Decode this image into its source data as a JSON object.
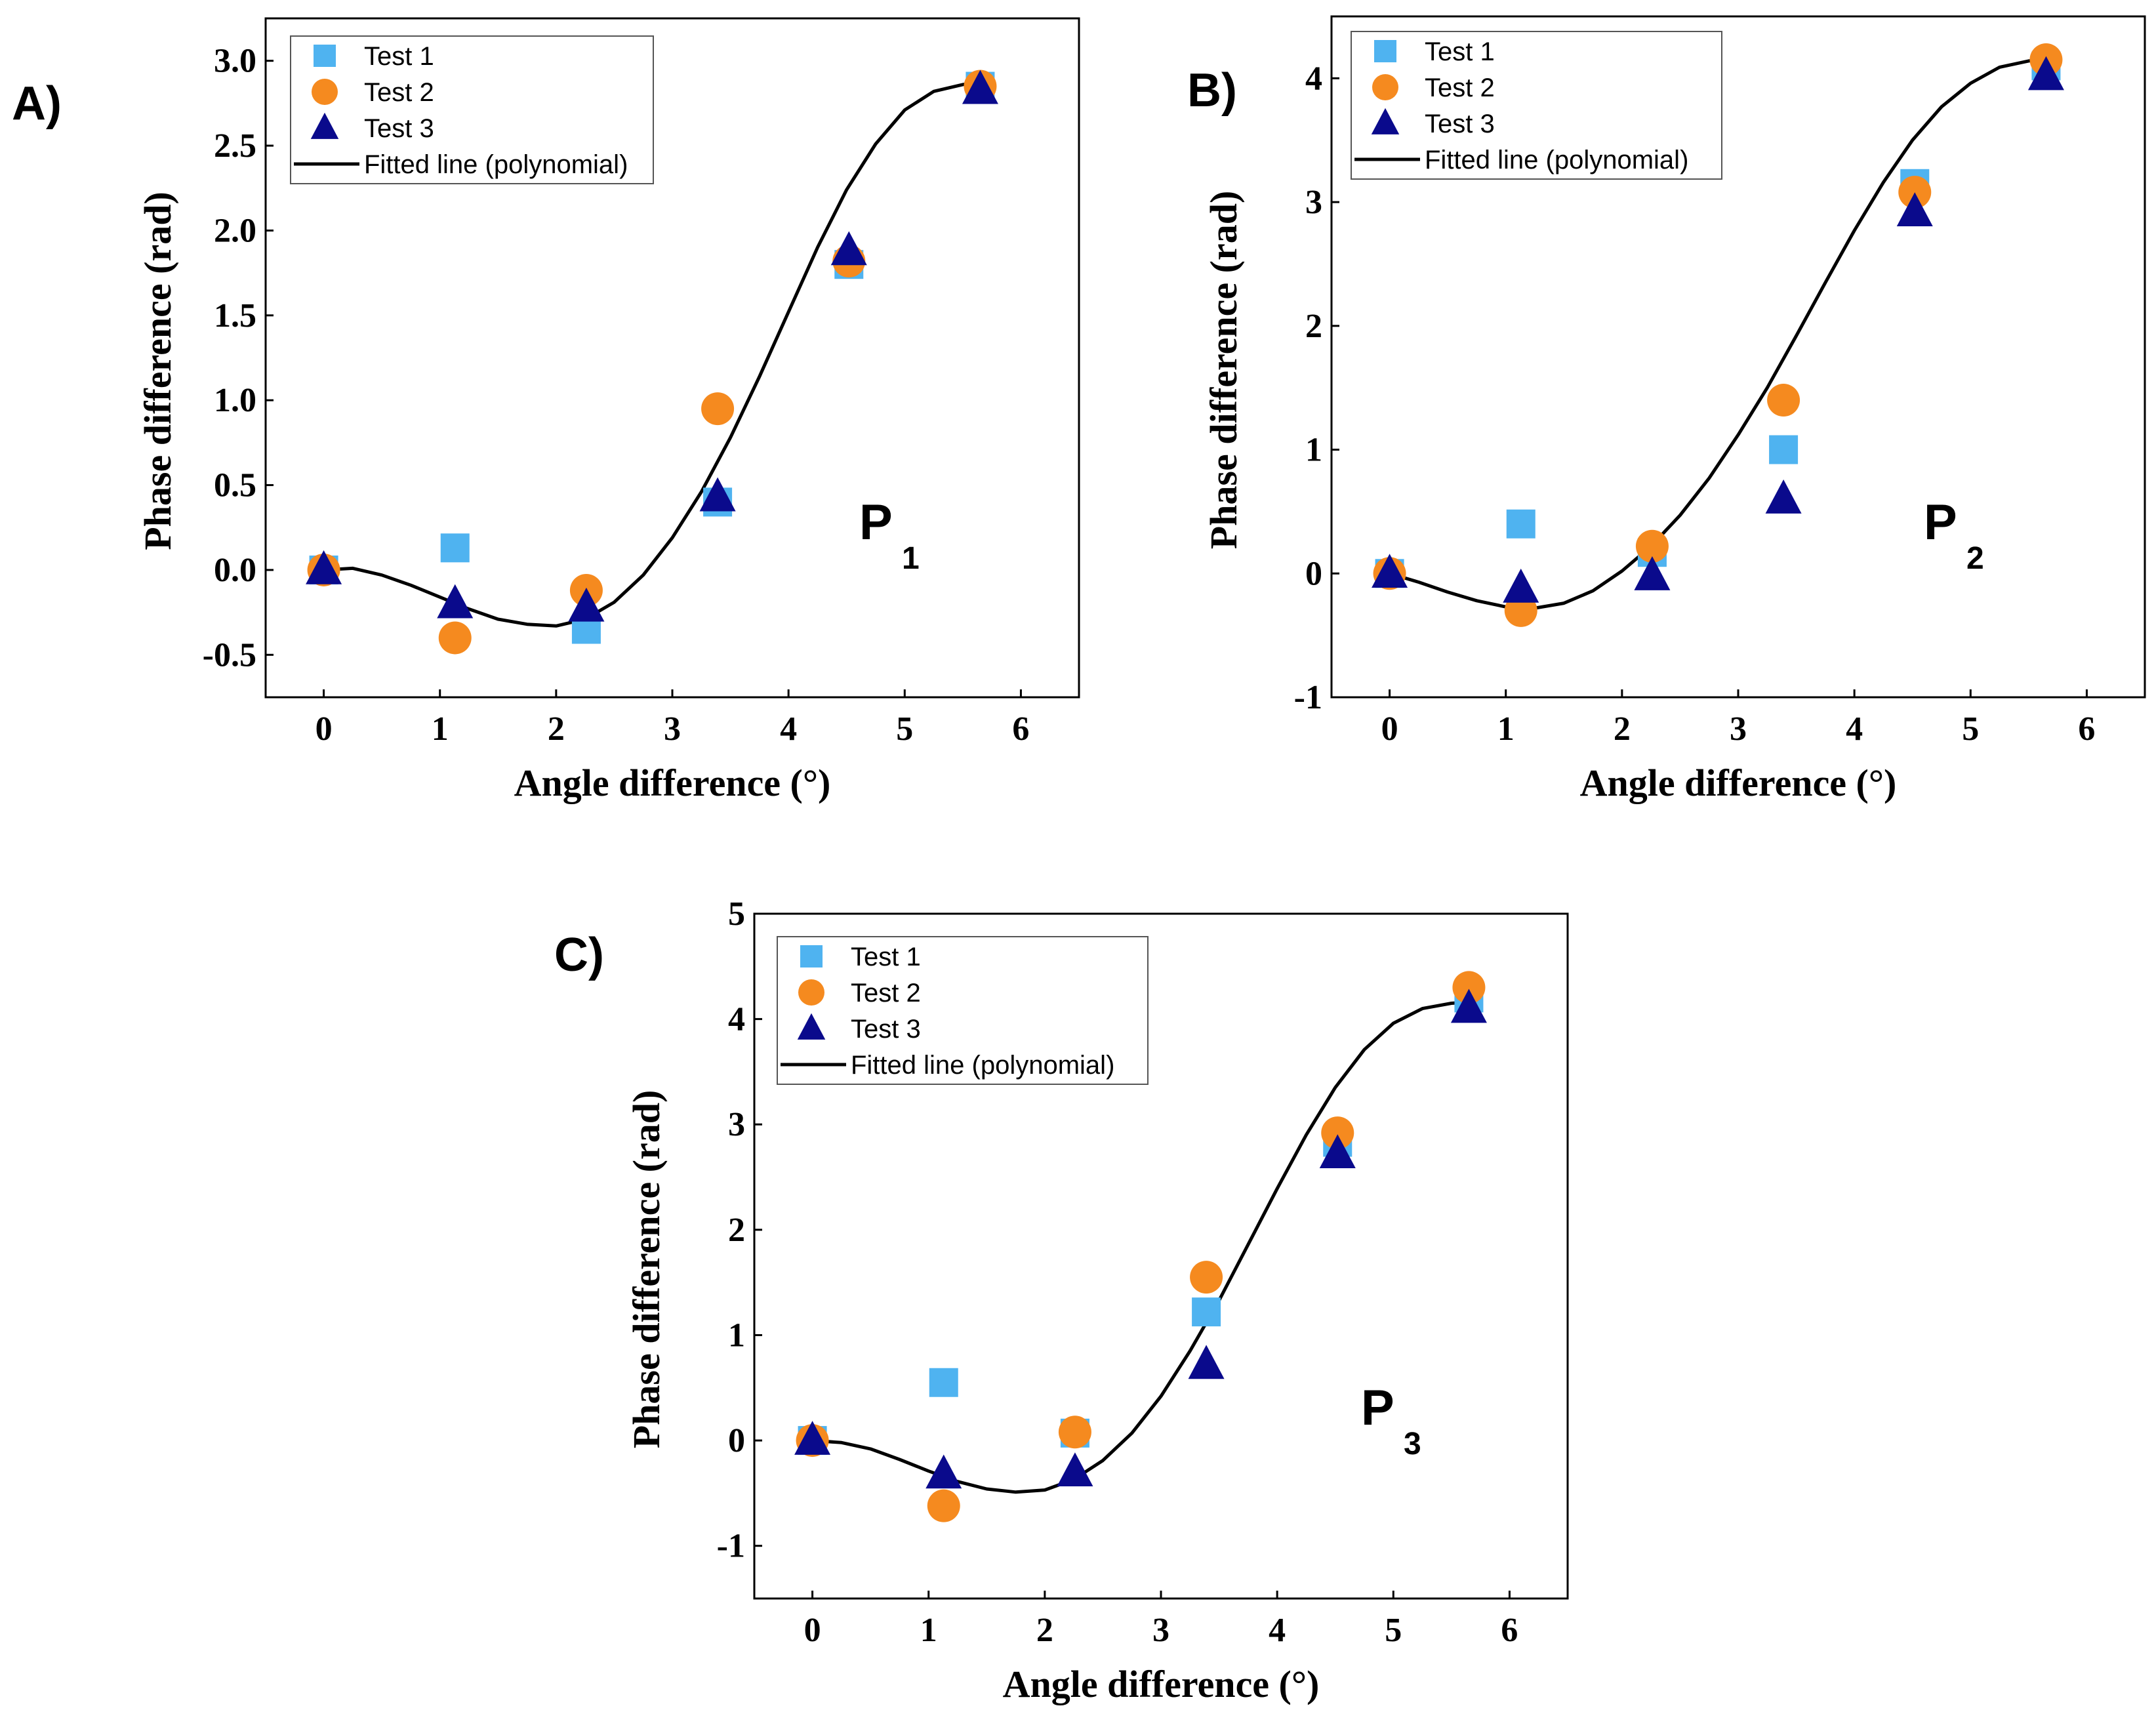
{
  "series_styles": [
    {
      "marker": "square",
      "color": "#4fb3f0"
    },
    {
      "marker": "circle",
      "color": "#f58a1f"
    },
    {
      "marker": "triangle",
      "color": "#0a0a8c"
    }
  ],
  "fit_color": "#000000",
  "chart_data": [
    {
      "type": "scatter",
      "panel_label": "A)",
      "annotation": {
        "main": "P",
        "sub": "1"
      },
      "xlabel": "Angle difference (°)",
      "ylabel": "Phase difference (rad)",
      "xlim": [
        -0.5,
        6.5
      ],
      "ylim": [
        -0.75,
        3.25
      ],
      "xticks": [
        0,
        1,
        2,
        3,
        4,
        5,
        6
      ],
      "yticks": [
        -0.5,
        0.0,
        0.5,
        1.0,
        1.5,
        2.0,
        2.5,
        3.0
      ],
      "ytick_labels": [
        "-0.5",
        "0.0",
        "0.5",
        "1.0",
        "1.5",
        "2.0",
        "2.5",
        "3.0"
      ],
      "grid": false,
      "legend": "top-left",
      "series": [
        {
          "name": "Test 1",
          "x": [
            0,
            1.13,
            2.26,
            3.39,
            4.52,
            5.65
          ],
          "y": [
            0.0,
            0.13,
            -0.35,
            0.4,
            1.8,
            2.85
          ]
        },
        {
          "name": "Test 2",
          "x": [
            0,
            1.13,
            2.26,
            3.39,
            4.52,
            5.65
          ],
          "y": [
            0.0,
            -0.4,
            -0.12,
            0.95,
            1.82,
            2.85
          ]
        },
        {
          "name": "Test 3",
          "x": [
            0,
            1.13,
            2.26,
            3.39,
            4.52,
            5.65
          ],
          "y": [
            0.0,
            -0.2,
            -0.22,
            0.43,
            1.88,
            2.83
          ]
        }
      ],
      "fit": {
        "name": "Fitted line (polynomial)",
        "x": [
          0,
          0.25,
          0.5,
          0.75,
          1.0,
          1.25,
          1.5,
          1.75,
          2.0,
          2.25,
          2.5,
          2.75,
          3.0,
          3.25,
          3.5,
          3.75,
          4.0,
          4.25,
          4.5,
          4.75,
          5.0,
          5.25,
          5.5,
          5.65
        ],
        "y": [
          0.0,
          0.01,
          -0.03,
          -0.09,
          -0.16,
          -0.23,
          -0.29,
          -0.32,
          -0.33,
          -0.29,
          -0.19,
          -0.03,
          0.19,
          0.46,
          0.78,
          1.14,
          1.52,
          1.9,
          2.24,
          2.51,
          2.71,
          2.82,
          2.86,
          2.87
        ]
      }
    },
    {
      "type": "scatter",
      "panel_label": "B)",
      "annotation": {
        "main": "P",
        "sub": "2"
      },
      "xlabel": "Angle difference (°)",
      "ylabel": "Phase difference (rad)",
      "xlim": [
        -0.5,
        6.5
      ],
      "ylim": [
        -1,
        4.5
      ],
      "xticks": [
        0,
        1,
        2,
        3,
        4,
        5,
        6
      ],
      "yticks": [
        -1,
        0,
        1,
        2,
        3,
        4
      ],
      "ytick_labels": [
        "-1",
        "0",
        "1",
        "2",
        "3",
        "4"
      ],
      "grid": false,
      "legend": "top-left",
      "series": [
        {
          "name": "Test 1",
          "x": [
            0,
            1.13,
            2.26,
            3.39,
            4.52,
            5.65
          ],
          "y": [
            0.0,
            0.4,
            0.17,
            1.0,
            3.15,
            4.1
          ]
        },
        {
          "name": "Test 2",
          "x": [
            0,
            1.13,
            2.26,
            3.39,
            4.52,
            5.65
          ],
          "y": [
            0.0,
            -0.3,
            0.22,
            1.4,
            3.08,
            4.15
          ]
        },
        {
          "name": "Test 3",
          "x": [
            0,
            1.13,
            2.26,
            3.39,
            4.52,
            5.65
          ],
          "y": [
            0.0,
            -0.12,
            -0.02,
            0.6,
            2.92,
            4.02
          ]
        }
      ],
      "fit": {
        "name": "Fitted line (polynomial)",
        "x": [
          0,
          0.25,
          0.5,
          0.75,
          1.0,
          1.25,
          1.5,
          1.75,
          2.0,
          2.25,
          2.5,
          2.75,
          3.0,
          3.25,
          3.5,
          3.75,
          4.0,
          4.25,
          4.5,
          4.75,
          5.0,
          5.25,
          5.5,
          5.65
        ],
        "y": [
          0.0,
          -0.07,
          -0.15,
          -0.22,
          -0.27,
          -0.28,
          -0.24,
          -0.14,
          0.02,
          0.22,
          0.47,
          0.77,
          1.12,
          1.5,
          1.92,
          2.35,
          2.77,
          3.16,
          3.5,
          3.77,
          3.96,
          4.09,
          4.14,
          4.15
        ]
      }
    },
    {
      "type": "scatter",
      "panel_label": "C)",
      "annotation": {
        "main": "P",
        "sub": "3"
      },
      "xlabel": "Angle difference (°)",
      "ylabel": "Phase difference (rad)",
      "xlim": [
        -0.5,
        6.5
      ],
      "ylim": [
        -1.5,
        5
      ],
      "xticks": [
        0,
        1,
        2,
        3,
        4,
        5,
        6
      ],
      "yticks": [
        -1,
        0,
        1,
        2,
        3,
        4,
        5
      ],
      "ytick_labels": [
        "-1",
        "0",
        "1",
        "2",
        "3",
        "4",
        "5"
      ],
      "grid": false,
      "legend": "top-left",
      "series": [
        {
          "name": "Test 1",
          "x": [
            0,
            1.13,
            2.26,
            3.39,
            4.52,
            5.65
          ],
          "y": [
            0.0,
            0.55,
            0.07,
            1.22,
            2.83,
            4.2
          ]
        },
        {
          "name": "Test 2",
          "x": [
            0,
            1.13,
            2.26,
            3.39,
            4.52,
            5.65
          ],
          "y": [
            0.0,
            -0.62,
            0.08,
            1.55,
            2.92,
            4.3
          ]
        },
        {
          "name": "Test 3",
          "x": [
            0,
            1.13,
            2.26,
            3.39,
            4.52,
            5.65
          ],
          "y": [
            0.0,
            -0.32,
            -0.3,
            0.72,
            2.72,
            4.1
          ]
        }
      ],
      "fit": {
        "name": "Fitted line (polynomial)",
        "x": [
          0,
          0.25,
          0.5,
          0.75,
          1.0,
          1.25,
          1.5,
          1.75,
          2.0,
          2.25,
          2.5,
          2.75,
          3.0,
          3.25,
          3.5,
          3.75,
          4.0,
          4.25,
          4.5,
          4.75,
          5.0,
          5.25,
          5.5,
          5.65
        ],
        "y": [
          0.0,
          -0.02,
          -0.08,
          -0.18,
          -0.29,
          -0.39,
          -0.46,
          -0.49,
          -0.47,
          -0.37,
          -0.19,
          0.07,
          0.42,
          0.85,
          1.33,
          1.86,
          2.39,
          2.9,
          3.35,
          3.71,
          3.96,
          4.1,
          4.15,
          4.16
        ]
      }
    }
  ]
}
